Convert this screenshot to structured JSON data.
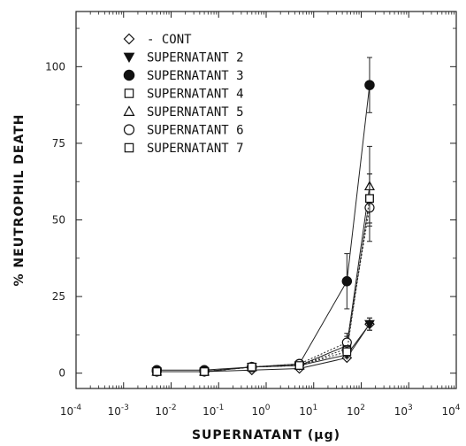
{
  "chart_data": {
    "type": "scatter",
    "title": "",
    "xlabel": "SUPERNATANT (µg)",
    "ylabel": "% NEUTROPHIL DEATH",
    "xscale": "log",
    "xlim": [
      0.0001,
      10000
    ],
    "ylim": [
      -5,
      118
    ],
    "x_ticks": [
      0.0001,
      0.001,
      0.01,
      0.1,
      1,
      10,
      100,
      1000,
      10000
    ],
    "x_tick_labels": [
      {
        "base": "10",
        "exp": "-4"
      },
      {
        "base": "10",
        "exp": "-3"
      },
      {
        "base": "10",
        "exp": "-2"
      },
      {
        "base": "10",
        "exp": "-1"
      },
      {
        "base": "10",
        "exp": "0"
      },
      {
        "base": "10",
        "exp": "1"
      },
      {
        "base": "10",
        "exp": "2"
      },
      {
        "base": "10",
        "exp": "3"
      },
      {
        "base": "10",
        "exp": "4"
      }
    ],
    "y_ticks": [
      0,
      25,
      50,
      75,
      100
    ],
    "y_tick_labels": [
      "0",
      "25",
      "50",
      "75",
      "100"
    ],
    "legend_position": "top-left",
    "x": [
      0.005,
      0.05,
      0.5,
      5,
      50,
      150
    ],
    "series": [
      {
        "name": "- CONT",
        "marker": "diamond-open",
        "values": [
          0.5,
          0.5,
          1,
          1.5,
          5,
          16
        ],
        "errors": [
          0.5,
          0.5,
          0.5,
          0.5,
          1,
          2
        ]
      },
      {
        "name": "SUPERNATANT 2",
        "marker": "triangle-down-filled",
        "values": [
          0.5,
          0.5,
          2,
          2.5,
          6,
          16
        ],
        "errors": [
          0.5,
          0.5,
          0.5,
          0.5,
          1,
          2
        ]
      },
      {
        "name": "SUPERNATANT 3",
        "marker": "circle-filled",
        "values": [
          1,
          1,
          2,
          3,
          30,
          94
        ],
        "errors": [
          0.5,
          0.5,
          0.5,
          0.5,
          9,
          9
        ]
      },
      {
        "name": "SUPERNATANT 4",
        "marker": "square-open",
        "values": [
          0.5,
          0.5,
          2,
          2.5,
          8,
          57
        ],
        "errors": [
          0.5,
          0.5,
          0.5,
          0.5,
          2,
          8
        ]
      },
      {
        "name": "SUPERNATANT 5",
        "marker": "triangle-up-open",
        "values": [
          0.5,
          0.5,
          2,
          2.5,
          9,
          61
        ],
        "errors": [
          0.5,
          0.5,
          0.5,
          0.5,
          3,
          13
        ]
      },
      {
        "name": "SUPERNATANT 6",
        "marker": "circle-open",
        "values": [
          0.5,
          0.5,
          2,
          3,
          10,
          54
        ],
        "errors": [
          0.5,
          0.5,
          0.5,
          0.5,
          3,
          11
        ]
      },
      {
        "name": "SUPERNATANT 7",
        "marker": "square-open",
        "values": [
          0.5,
          0.5,
          2,
          2.5,
          7,
          57
        ],
        "errors": [
          0.5,
          0.5,
          0.5,
          0.5,
          2,
          8
        ]
      }
    ],
    "colors": {
      "line": "#222222",
      "marker": "#111111",
      "background": "#ffffff"
    }
  }
}
